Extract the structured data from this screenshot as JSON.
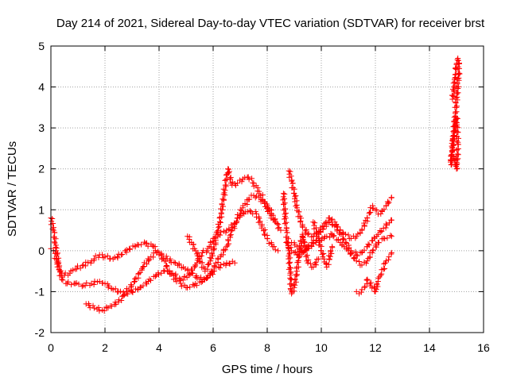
{
  "chart_data": {
    "type": "scatter",
    "title": "Day 214 of 2021, Sidereal Day-to-day VTEC variation (SDTVAR) for receiver brst",
    "xlabel": "GPS time / hours",
    "ylabel": "SDTVAR / TECUs",
    "xlim": [
      0,
      16
    ],
    "ylim": [
      -2,
      5
    ],
    "xticks": [
      "0",
      "2",
      "4",
      "6",
      "8",
      "10",
      "12",
      "14",
      "16"
    ],
    "yticks": [
      "-2",
      "-1",
      "0",
      "1",
      "2",
      "3",
      "4",
      "5"
    ],
    "grid": true,
    "marker": "+",
    "color": "#ff0000",
    "series": [
      {
        "points": [
          [
            0.0,
            0.05
          ],
          [
            0.1,
            0.0
          ],
          [
            0.2,
            -0.2
          ],
          [
            0.3,
            -0.45
          ],
          [
            0.4,
            -0.55
          ],
          [
            0.5,
            -0.6
          ],
          [
            0.7,
            -0.55
          ],
          [
            0.9,
            -0.45
          ],
          [
            1.2,
            -0.35
          ],
          [
            1.5,
            -0.25
          ],
          [
            1.8,
            -0.1
          ],
          [
            2.0,
            -0.15
          ],
          [
            2.3,
            -0.2
          ],
          [
            2.6,
            -0.1
          ],
          [
            2.9,
            0.05
          ],
          [
            3.2,
            0.15
          ],
          [
            3.5,
            0.18
          ],
          [
            3.8,
            0.1
          ],
          [
            4.0,
            -0.05
          ],
          [
            4.3,
            -0.2
          ],
          [
            4.6,
            -0.3
          ],
          [
            4.9,
            -0.4
          ],
          [
            5.2,
            -0.55
          ],
          [
            5.5,
            -0.7
          ],
          [
            5.8,
            -0.65
          ],
          [
            6.0,
            -0.5
          ],
          [
            6.2,
            -0.4
          ],
          [
            6.5,
            -0.3
          ],
          [
            6.8,
            -0.3
          ]
        ]
      },
      {
        "points": [
          [
            0.0,
            0.8
          ],
          [
            0.1,
            0.5
          ],
          [
            0.2,
            0.0
          ],
          [
            0.3,
            -0.4
          ],
          [
            0.4,
            -0.7
          ],
          [
            0.6,
            -0.8
          ],
          [
            0.9,
            -0.8
          ],
          [
            1.2,
            -0.85
          ],
          [
            1.5,
            -0.8
          ],
          [
            1.8,
            -0.75
          ],
          [
            2.0,
            -0.8
          ],
          [
            2.3,
            -0.95
          ],
          [
            2.5,
            -1.0
          ],
          [
            2.8,
            -1.05
          ],
          [
            3.0,
            -1.0
          ],
          [
            3.3,
            -0.9
          ],
          [
            3.6,
            -0.75
          ],
          [
            3.9,
            -0.6
          ],
          [
            4.2,
            -0.5
          ],
          [
            4.5,
            -0.55
          ],
          [
            4.8,
            -0.7
          ],
          [
            5.1,
            -0.6
          ],
          [
            5.4,
            -0.3
          ],
          [
            5.6,
            -0.05
          ],
          [
            5.8,
            0.0
          ],
          [
            6.0,
            0.3
          ],
          [
            6.2,
            0.4
          ],
          [
            6.5,
            0.5
          ],
          [
            6.8,
            0.65
          ],
          [
            7.0,
            0.85
          ],
          [
            7.2,
            0.95
          ],
          [
            7.4,
            0.95
          ],
          [
            7.6,
            0.9
          ],
          [
            7.8,
            0.6
          ],
          [
            8.0,
            0.3
          ],
          [
            8.2,
            0.1
          ],
          [
            8.4,
            0.0
          ]
        ]
      },
      {
        "points": [
          [
            1.3,
            -1.3
          ],
          [
            1.6,
            -1.4
          ],
          [
            1.9,
            -1.45
          ],
          [
            2.2,
            -1.35
          ],
          [
            2.5,
            -1.25
          ],
          [
            2.8,
            -1.0
          ],
          [
            3.1,
            -0.75
          ],
          [
            3.4,
            -0.4
          ],
          [
            3.7,
            -0.15
          ],
          [
            3.9,
            -0.05
          ],
          [
            4.0,
            -0.1
          ],
          [
            4.2,
            -0.25
          ],
          [
            4.4,
            -0.55
          ],
          [
            4.6,
            -0.7
          ],
          [
            4.8,
            -0.8
          ],
          [
            5.0,
            -0.9
          ],
          [
            5.3,
            -0.85
          ],
          [
            5.6,
            -0.75
          ],
          [
            5.9,
            -0.6
          ],
          [
            6.1,
            -0.3
          ],
          [
            6.3,
            -0.1
          ],
          [
            6.5,
            0.1
          ],
          [
            6.7,
            0.5
          ],
          [
            6.9,
            0.8
          ],
          [
            7.1,
            1.05
          ],
          [
            7.3,
            1.25
          ],
          [
            7.5,
            1.35
          ],
          [
            7.7,
            1.3
          ],
          [
            7.9,
            1.15
          ],
          [
            8.1,
            1.0
          ],
          [
            8.3,
            0.7
          ],
          [
            8.5,
            0.5
          ]
        ]
      },
      {
        "points": [
          [
            5.05,
            0.35
          ],
          [
            5.2,
            0.2
          ],
          [
            5.35,
            0.0
          ],
          [
            5.5,
            -0.2
          ],
          [
            5.7,
            -0.5
          ],
          [
            5.9,
            -0.25
          ],
          [
            6.1,
            0.25
          ],
          [
            6.3,
            0.9
          ],
          [
            6.45,
            1.6
          ],
          [
            6.55,
            2.0
          ],
          [
            6.7,
            1.6
          ],
          [
            6.9,
            1.65
          ],
          [
            7.1,
            1.75
          ],
          [
            7.3,
            1.8
          ],
          [
            7.5,
            1.65
          ],
          [
            7.7,
            1.45
          ],
          [
            7.9,
            1.2
          ],
          [
            8.1,
            0.9
          ],
          [
            8.3,
            0.7
          ]
        ]
      },
      {
        "points": [
          [
            8.6,
            1.4
          ],
          [
            8.7,
            0.5
          ],
          [
            8.8,
            0.0
          ],
          [
            8.85,
            -0.6
          ],
          [
            8.9,
            -1.05
          ],
          [
            9.0,
            -0.9
          ],
          [
            9.1,
            -0.5
          ],
          [
            9.2,
            0.0
          ],
          [
            9.3,
            0.4
          ],
          [
            9.4,
            0.1
          ],
          [
            9.5,
            -0.3
          ],
          [
            9.7,
            -0.4
          ],
          [
            9.9,
            -0.2
          ]
        ]
      },
      {
        "points": [
          [
            8.8,
            1.95
          ],
          [
            8.9,
            1.7
          ],
          [
            9.0,
            1.4
          ],
          [
            9.1,
            1.05
          ],
          [
            9.3,
            0.6
          ],
          [
            9.5,
            0.4
          ],
          [
            9.7,
            0.35
          ],
          [
            9.9,
            0.45
          ],
          [
            10.1,
            0.6
          ],
          [
            10.3,
            0.7
          ],
          [
            10.5,
            0.6
          ],
          [
            10.7,
            0.4
          ],
          [
            10.9,
            0.2
          ],
          [
            11.1,
            0.0
          ],
          [
            11.3,
            -0.1
          ],
          [
            11.5,
            -0.05
          ],
          [
            11.7,
            0.1
          ],
          [
            11.9,
            0.25
          ],
          [
            12.1,
            0.4
          ],
          [
            12.3,
            0.55
          ],
          [
            12.6,
            0.75
          ]
        ]
      },
      {
        "points": [
          [
            8.9,
            0.2
          ],
          [
            9.1,
            0.1
          ],
          [
            9.3,
            0.0
          ],
          [
            9.5,
            0.05
          ],
          [
            9.7,
            0.2
          ],
          [
            9.9,
            0.4
          ],
          [
            10.1,
            0.6
          ],
          [
            10.3,
            0.8
          ],
          [
            10.5,
            0.7
          ],
          [
            10.7,
            0.5
          ],
          [
            10.9,
            0.4
          ],
          [
            11.1,
            0.3
          ],
          [
            11.3,
            0.35
          ],
          [
            11.5,
            0.5
          ],
          [
            11.7,
            0.8
          ],
          [
            11.9,
            1.1
          ],
          [
            12.0,
            1.0
          ],
          [
            12.2,
            0.9
          ],
          [
            12.4,
            1.1
          ],
          [
            12.6,
            1.3
          ]
        ]
      },
      {
        "points": [
          [
            8.7,
            0.2
          ],
          [
            8.9,
            0.0
          ],
          [
            9.1,
            -0.1
          ],
          [
            9.3,
            -0.05
          ],
          [
            9.5,
            0.1
          ],
          [
            9.8,
            0.2
          ],
          [
            10.1,
            0.3
          ],
          [
            10.4,
            0.4
          ],
          [
            10.7,
            0.2
          ],
          [
            11.0,
            0.0
          ],
          [
            11.3,
            -0.25
          ],
          [
            11.5,
            -0.35
          ],
          [
            11.7,
            -0.25
          ],
          [
            11.9,
            0.0
          ],
          [
            12.1,
            0.2
          ],
          [
            12.3,
            0.3
          ],
          [
            12.6,
            0.35
          ]
        ]
      },
      {
        "points": [
          [
            9.7,
            0.7
          ],
          [
            9.9,
            0.3
          ],
          [
            10.0,
            0.0
          ],
          [
            10.1,
            -0.2
          ],
          [
            10.2,
            -0.4
          ],
          [
            10.3,
            -0.2
          ],
          [
            10.4,
            0.1
          ]
        ]
      },
      {
        "points": [
          [
            11.3,
            -1.0
          ],
          [
            11.4,
            -1.05
          ],
          [
            11.5,
            -0.95
          ],
          [
            11.6,
            -0.9
          ],
          [
            11.7,
            -0.7
          ],
          [
            12.0,
            -1.0
          ],
          [
            12.1,
            -0.75
          ],
          [
            12.2,
            -0.6
          ],
          [
            12.3,
            -0.45
          ],
          [
            12.4,
            -0.25
          ],
          [
            12.5,
            -0.15
          ],
          [
            12.6,
            -0.05
          ]
        ]
      },
      {
        "points": [
          [
            14.85,
            3.7
          ],
          [
            14.9,
            4.0
          ],
          [
            14.95,
            4.3
          ],
          [
            15.0,
            4.55
          ],
          [
            15.05,
            4.7
          ],
          [
            15.1,
            4.45
          ],
          [
            14.8,
            2.1
          ],
          [
            14.85,
            2.5
          ],
          [
            14.9,
            2.8
          ],
          [
            14.95,
            3.1
          ],
          [
            15.0,
            3.25
          ],
          [
            15.05,
            2.6
          ],
          [
            15.0,
            2.0
          ],
          [
            14.9,
            2.3
          ]
        ]
      }
    ]
  }
}
